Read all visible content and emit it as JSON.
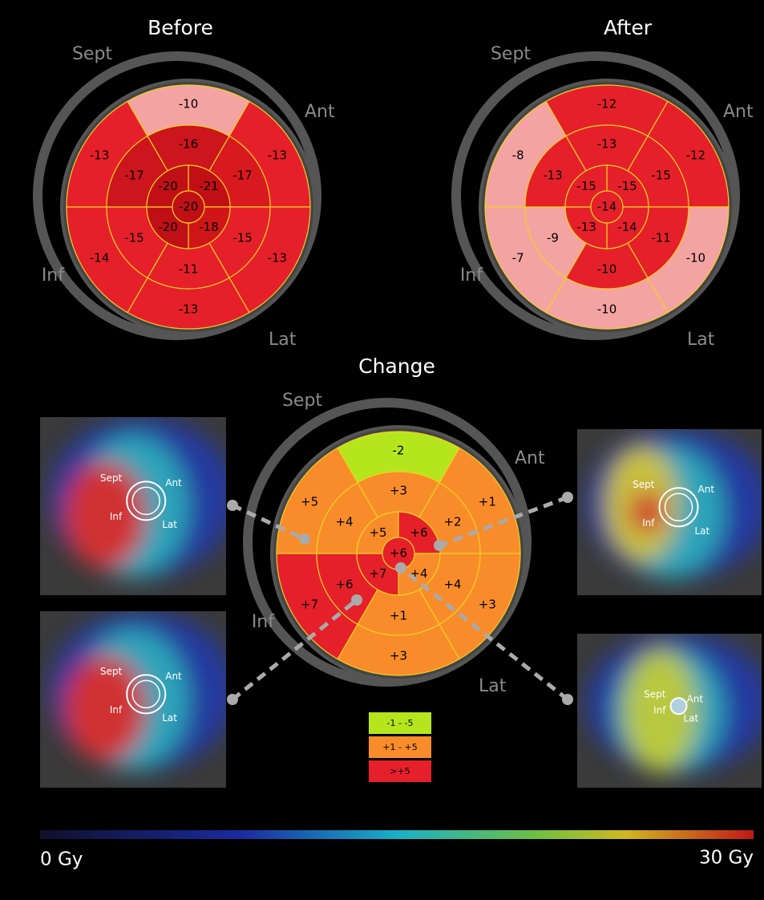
{
  "panels": [
    {
      "title": "Before",
      "orientation": {
        "sept": "Sept",
        "ant": "Ant",
        "inf": "Inf",
        "lat": "Lat"
      },
      "segments": {
        "basal": [
          {
            "label": "-10",
            "color": "#f4a3a3"
          },
          {
            "label": "-13",
            "color": "#e6202a"
          },
          {
            "label": "-13",
            "color": "#e6202a"
          },
          {
            "label": "-13",
            "color": "#e6202a"
          },
          {
            "label": "-14",
            "color": "#e6202a"
          },
          {
            "label": "-13",
            "color": "#e6202a"
          }
        ],
        "mid": [
          {
            "label": "-16",
            "color": "#cc151c"
          },
          {
            "label": "-17",
            "color": "#d8191f"
          },
          {
            "label": "-15",
            "color": "#e6202a"
          },
          {
            "label": "-11",
            "color": "#e6202a"
          },
          {
            "label": "-15",
            "color": "#e6202a"
          },
          {
            "label": "-17",
            "color": "#cc151c"
          }
        ],
        "apical": [
          {
            "label": "-21",
            "color": "#c10f16"
          },
          {
            "label": "-18",
            "color": "#d01519"
          },
          {
            "label": "-20",
            "color": "#c10f16"
          },
          {
            "label": "-20",
            "color": "#c10f16"
          }
        ],
        "apex": {
          "label": "-20",
          "color": "#c10f16"
        }
      }
    },
    {
      "title": "After",
      "orientation": {
        "sept": "Sept",
        "ant": "Ant",
        "inf": "Inf",
        "lat": "Lat"
      },
      "segments": {
        "basal": [
          {
            "label": "-12",
            "color": "#e6202a"
          },
          {
            "label": "-12",
            "color": "#e6202a"
          },
          {
            "label": "-10",
            "color": "#f4a3a3"
          },
          {
            "label": "-10",
            "color": "#f4a3a3"
          },
          {
            "label": "-7",
            "color": "#f4a3a3"
          },
          {
            "label": "-8",
            "color": "#f4a3a3"
          }
        ],
        "mid": [
          {
            "label": "-13",
            "color": "#e6202a"
          },
          {
            "label": "-15",
            "color": "#e6202a"
          },
          {
            "label": "-11",
            "color": "#e6202a"
          },
          {
            "label": "-10",
            "color": "#e6202a"
          },
          {
            "label": "-9",
            "color": "#f4a3a3"
          },
          {
            "label": "-13",
            "color": "#e6202a"
          }
        ],
        "apical": [
          {
            "label": "-15",
            "color": "#e6202a"
          },
          {
            "label": "-14",
            "color": "#e6202a"
          },
          {
            "label": "-13",
            "color": "#e6202a"
          },
          {
            "label": "-15",
            "color": "#e6202a"
          }
        ],
        "apex": {
          "label": "-14",
          "color": "#e6202a"
        }
      }
    },
    {
      "title": "Change",
      "orientation": {
        "sept": "Sept",
        "ant": "Ant",
        "inf": "Inf",
        "lat": "Lat"
      },
      "segments": {
        "basal": [
          {
            "label": "-2",
            "color": "#b5e61d"
          },
          {
            "label": "+1",
            "color": "#f98c2a"
          },
          {
            "label": "+3",
            "color": "#f98c2a"
          },
          {
            "label": "+3",
            "color": "#f98c2a"
          },
          {
            "label": "+7",
            "color": "#e6202a"
          },
          {
            "label": "+5",
            "color": "#f98c2a"
          }
        ],
        "mid": [
          {
            "label": "+3",
            "color": "#f98c2a"
          },
          {
            "label": "+2",
            "color": "#f98c2a"
          },
          {
            "label": "+4",
            "color": "#f98c2a"
          },
          {
            "label": "+1",
            "color": "#f98c2a"
          },
          {
            "label": "+6",
            "color": "#e6202a"
          },
          {
            "label": "+4",
            "color": "#f98c2a"
          }
        ],
        "apical": [
          {
            "label": "+6",
            "color": "#e6202a"
          },
          {
            "label": "+4",
            "color": "#f98c2a"
          },
          {
            "label": "+7",
            "color": "#e6202a"
          },
          {
            "label": "+5",
            "color": "#f98c2a"
          }
        ],
        "apex": {
          "label": "+6",
          "color": "#e6202a"
        }
      }
    }
  ],
  "legend": [
    {
      "label": "-1 - -5",
      "color": "#b5e61d"
    },
    {
      "label": "+1 - +5",
      "color": "#f98c2a"
    },
    {
      "label": ">+5",
      "color": "#e6202a"
    }
  ],
  "image_labels": {
    "sept": "Sept",
    "ant": "Ant",
    "inf": "Inf",
    "lat": "Lat"
  },
  "colorbar": {
    "min_label": "0 Gy",
    "max_label": "30 Gy"
  }
}
